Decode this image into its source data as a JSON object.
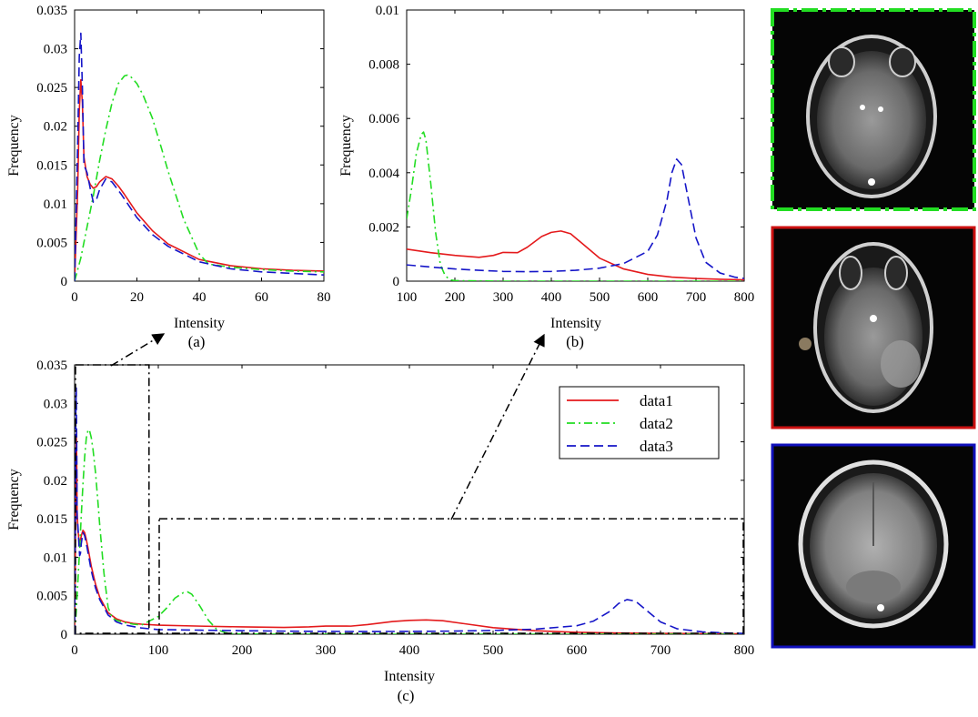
{
  "colors": {
    "data1": "#e41a1c",
    "data2": "#22dd22",
    "data3": "#1515c8",
    "axis": "#000000",
    "mri_background": "#050505"
  },
  "panel_images": [
    {
      "name": "mri-slice-data2",
      "frame_color": "#22dd22",
      "frame_style": "dash-dot"
    },
    {
      "name": "mri-slice-data1",
      "frame_color": "#cc1111",
      "frame_style": "solid"
    },
    {
      "name": "mri-slice-data3",
      "frame_color": "#1010bb",
      "frame_style": "solid"
    }
  ],
  "chart_data": [
    {
      "id": "a",
      "type": "line",
      "caption": "(a)",
      "xlabel": "Intensity",
      "ylabel": "Frequency",
      "xlim": [
        0,
        80
      ],
      "ylim": [
        0,
        0.035
      ],
      "xticks": [
        0,
        20,
        40,
        60,
        80
      ],
      "yticks": [
        0,
        0.005,
        0.01,
        0.015,
        0.02,
        0.025,
        0.03,
        0.035
      ],
      "ytick_labels": [
        "0",
        "0.005",
        "0.01",
        "0.015",
        "0.02",
        "0.025",
        "0.03",
        "0.035"
      ],
      "series": [
        {
          "name": "data1",
          "color": "#e41a1c",
          "dash": "solid",
          "x": [
            0,
            1,
            1.5,
            2,
            2.5,
            3,
            4,
            5,
            6,
            7,
            8,
            10,
            12,
            14,
            16,
            20,
            25,
            30,
            40,
            50,
            60,
            70,
            80
          ],
          "y": [
            0.0,
            0.012,
            0.022,
            0.026,
            0.023,
            0.016,
            0.0135,
            0.0125,
            0.012,
            0.0122,
            0.0128,
            0.0135,
            0.0132,
            0.0123,
            0.0112,
            0.0088,
            0.0065,
            0.0048,
            0.0028,
            0.002,
            0.0016,
            0.0014,
            0.0013
          ]
        },
        {
          "name": "data2",
          "color": "#22dd22",
          "dash": "dashdot",
          "x": [
            0,
            2,
            4,
            6,
            8,
            10,
            12,
            14,
            16,
            17,
            18,
            20,
            22,
            25,
            28,
            30,
            35,
            40,
            43,
            45,
            50,
            60,
            70,
            80
          ],
          "y": [
            0.0,
            0.003,
            0.007,
            0.011,
            0.0155,
            0.0195,
            0.023,
            0.0255,
            0.0265,
            0.0266,
            0.0264,
            0.0255,
            0.024,
            0.021,
            0.017,
            0.0142,
            0.008,
            0.0035,
            0.0022,
            0.0021,
            0.0018,
            0.0015,
            0.0013,
            0.0012
          ]
        },
        {
          "name": "data3",
          "color": "#1515c8",
          "dash": "dashed",
          "x": [
            0,
            1,
            1.5,
            2,
            2.5,
            3,
            4,
            5,
            6,
            7,
            8,
            10,
            12,
            15,
            20,
            25,
            30,
            40,
            50,
            60,
            70,
            80
          ],
          "y": [
            0.0,
            0.018,
            0.029,
            0.032,
            0.025,
            0.015,
            0.014,
            0.012,
            0.0102,
            0.0105,
            0.0118,
            0.0132,
            0.0128,
            0.0112,
            0.0082,
            0.006,
            0.0045,
            0.0025,
            0.0016,
            0.0012,
            0.001,
            0.0008
          ]
        }
      ]
    },
    {
      "id": "b",
      "type": "line",
      "caption": "(b)",
      "xlabel": "Intensity",
      "ylabel": "Frequency",
      "xlim": [
        100,
        800
      ],
      "ylim": [
        0,
        0.01
      ],
      "xticks": [
        100,
        200,
        300,
        400,
        500,
        600,
        700,
        800
      ],
      "yticks": [
        0,
        0.002,
        0.004,
        0.006,
        0.008,
        0.01
      ],
      "ytick_labels": [
        "0",
        "0.002",
        "0.004",
        "0.006",
        "0.008",
        "0.01"
      ],
      "series": [
        {
          "name": "data1",
          "color": "#e41a1c",
          "dash": "solid",
          "x": [
            100,
            150,
            200,
            250,
            280,
            300,
            330,
            350,
            380,
            400,
            420,
            440,
            460,
            500,
            550,
            600,
            650,
            700,
            750,
            800
          ],
          "y": [
            0.00118,
            0.00105,
            0.00095,
            0.00088,
            0.00095,
            0.00106,
            0.00105,
            0.00125,
            0.00165,
            0.0018,
            0.00185,
            0.00175,
            0.00145,
            0.00085,
            0.00045,
            0.00025,
            0.00015,
            0.0001,
            7e-05,
            5e-05
          ]
        },
        {
          "name": "data2",
          "color": "#22dd22",
          "dash": "dashdot",
          "x": [
            100,
            110,
            120,
            130,
            135,
            140,
            150,
            160,
            170,
            180,
            190,
            200,
            250,
            300,
            400,
            500,
            600,
            700,
            800
          ],
          "y": [
            0.0023,
            0.0034,
            0.0047,
            0.0054,
            0.0055,
            0.0052,
            0.0036,
            0.0018,
            0.0006,
            0.0002,
            5e-05,
            2e-05,
            1e-05,
            0.0,
            0.0,
            0.0,
            0.0,
            0.0,
            0.0
          ]
        },
        {
          "name": "data3",
          "color": "#1515c8",
          "dash": "dashed",
          "x": [
            100,
            150,
            200,
            250,
            300,
            350,
            400,
            450,
            500,
            550,
            600,
            620,
            640,
            650,
            660,
            670,
            680,
            700,
            720,
            750,
            780,
            800
          ],
          "y": [
            0.0006,
            0.00052,
            0.00045,
            0.0004,
            0.00036,
            0.00035,
            0.00036,
            0.0004,
            0.00048,
            0.00065,
            0.0011,
            0.0017,
            0.003,
            0.004,
            0.0045,
            0.0043,
            0.0034,
            0.0016,
            0.0007,
            0.0003,
            0.00015,
            0.0001
          ]
        }
      ]
    },
    {
      "id": "c",
      "type": "line",
      "caption": "(c)",
      "xlabel": "Intensity",
      "ylabel": "Frequency",
      "xlim": [
        0,
        800
      ],
      "ylim": [
        0,
        0.035
      ],
      "xticks": [
        0,
        100,
        200,
        300,
        400,
        500,
        600,
        700,
        800
      ],
      "yticks": [
        0,
        0.005,
        0.01,
        0.015,
        0.02,
        0.025,
        0.03,
        0.035
      ],
      "ytick_labels": [
        "0",
        "0.005",
        "0.01",
        "0.015",
        "0.02",
        "0.025",
        "0.03",
        "0.035"
      ],
      "legend": {
        "position": "top-right",
        "entries": [
          "data1",
          "data2",
          "data3"
        ]
      },
      "zoom_boxes": [
        {
          "target": "a",
          "x_range": [
            0,
            90
          ],
          "y_range": [
            0,
            0.035
          ]
        },
        {
          "target": "b",
          "x_range": [
            100,
            800
          ],
          "y_range": [
            0,
            0.015
          ]
        }
      ],
      "series": [
        {
          "name": "data1",
          "color": "#e41a1c",
          "dash": "solid",
          "x": [
            0,
            1,
            1.5,
            2,
            2.5,
            3,
            4,
            5,
            6,
            7,
            8,
            10,
            12,
            14,
            16,
            20,
            25,
            30,
            40,
            50,
            60,
            70,
            80,
            100,
            150,
            200,
            250,
            280,
            300,
            330,
            350,
            380,
            400,
            420,
            440,
            460,
            500,
            550,
            600,
            650,
            700,
            750,
            800
          ],
          "y": [
            0.0,
            0.012,
            0.022,
            0.026,
            0.023,
            0.016,
            0.0135,
            0.0125,
            0.012,
            0.0122,
            0.0128,
            0.0135,
            0.0132,
            0.0123,
            0.0112,
            0.0088,
            0.0065,
            0.0048,
            0.0028,
            0.002,
            0.0016,
            0.0014,
            0.0013,
            0.00118,
            0.00105,
            0.00095,
            0.00088,
            0.00095,
            0.00106,
            0.00105,
            0.00125,
            0.00165,
            0.0018,
            0.00185,
            0.00175,
            0.00145,
            0.00085,
            0.00045,
            0.00025,
            0.00015,
            0.0001,
            7e-05,
            5e-05
          ]
        },
        {
          "name": "data2",
          "color": "#22dd22",
          "dash": "dashdot",
          "x": [
            0,
            2,
            4,
            6,
            8,
            10,
            12,
            14,
            16,
            17,
            18,
            20,
            22,
            25,
            28,
            30,
            35,
            40,
            45,
            50,
            60,
            70,
            80,
            100,
            110,
            120,
            130,
            135,
            140,
            150,
            160,
            170,
            180,
            190,
            200,
            250,
            300,
            400,
            500,
            600,
            700,
            800
          ],
          "y": [
            0.0,
            0.003,
            0.007,
            0.011,
            0.0155,
            0.0195,
            0.023,
            0.0255,
            0.0265,
            0.0266,
            0.0264,
            0.0255,
            0.024,
            0.021,
            0.017,
            0.0142,
            0.008,
            0.0035,
            0.0021,
            0.0018,
            0.0015,
            0.0013,
            0.0012,
            0.0023,
            0.0034,
            0.0047,
            0.0054,
            0.0055,
            0.0052,
            0.0036,
            0.0018,
            0.0006,
            0.0002,
            5e-05,
            2e-05,
            1e-05,
            0.0,
            0.0,
            0.0,
            0.0,
            0.0,
            0.0
          ]
        },
        {
          "name": "data3",
          "color": "#1515c8",
          "dash": "dashed",
          "x": [
            0,
            1,
            1.5,
            2,
            2.5,
            3,
            4,
            5,
            6,
            7,
            8,
            10,
            12,
            15,
            20,
            25,
            30,
            40,
            50,
            60,
            70,
            80,
            100,
            150,
            200,
            250,
            300,
            350,
            400,
            450,
            500,
            550,
            600,
            620,
            640,
            650,
            660,
            670,
            680,
            700,
            720,
            750,
            780,
            800
          ],
          "y": [
            0.0,
            0.018,
            0.029,
            0.032,
            0.025,
            0.015,
            0.014,
            0.012,
            0.0102,
            0.0105,
            0.0118,
            0.0132,
            0.0128,
            0.0112,
            0.0082,
            0.006,
            0.0045,
            0.0025,
            0.0016,
            0.0012,
            0.001,
            0.0008,
            0.0006,
            0.00052,
            0.00045,
            0.0004,
            0.00036,
            0.00035,
            0.00036,
            0.0004,
            0.00048,
            0.00065,
            0.0011,
            0.0017,
            0.003,
            0.004,
            0.0045,
            0.0043,
            0.0034,
            0.0016,
            0.0007,
            0.0003,
            0.00015,
            0.0001
          ]
        }
      ]
    }
  ]
}
